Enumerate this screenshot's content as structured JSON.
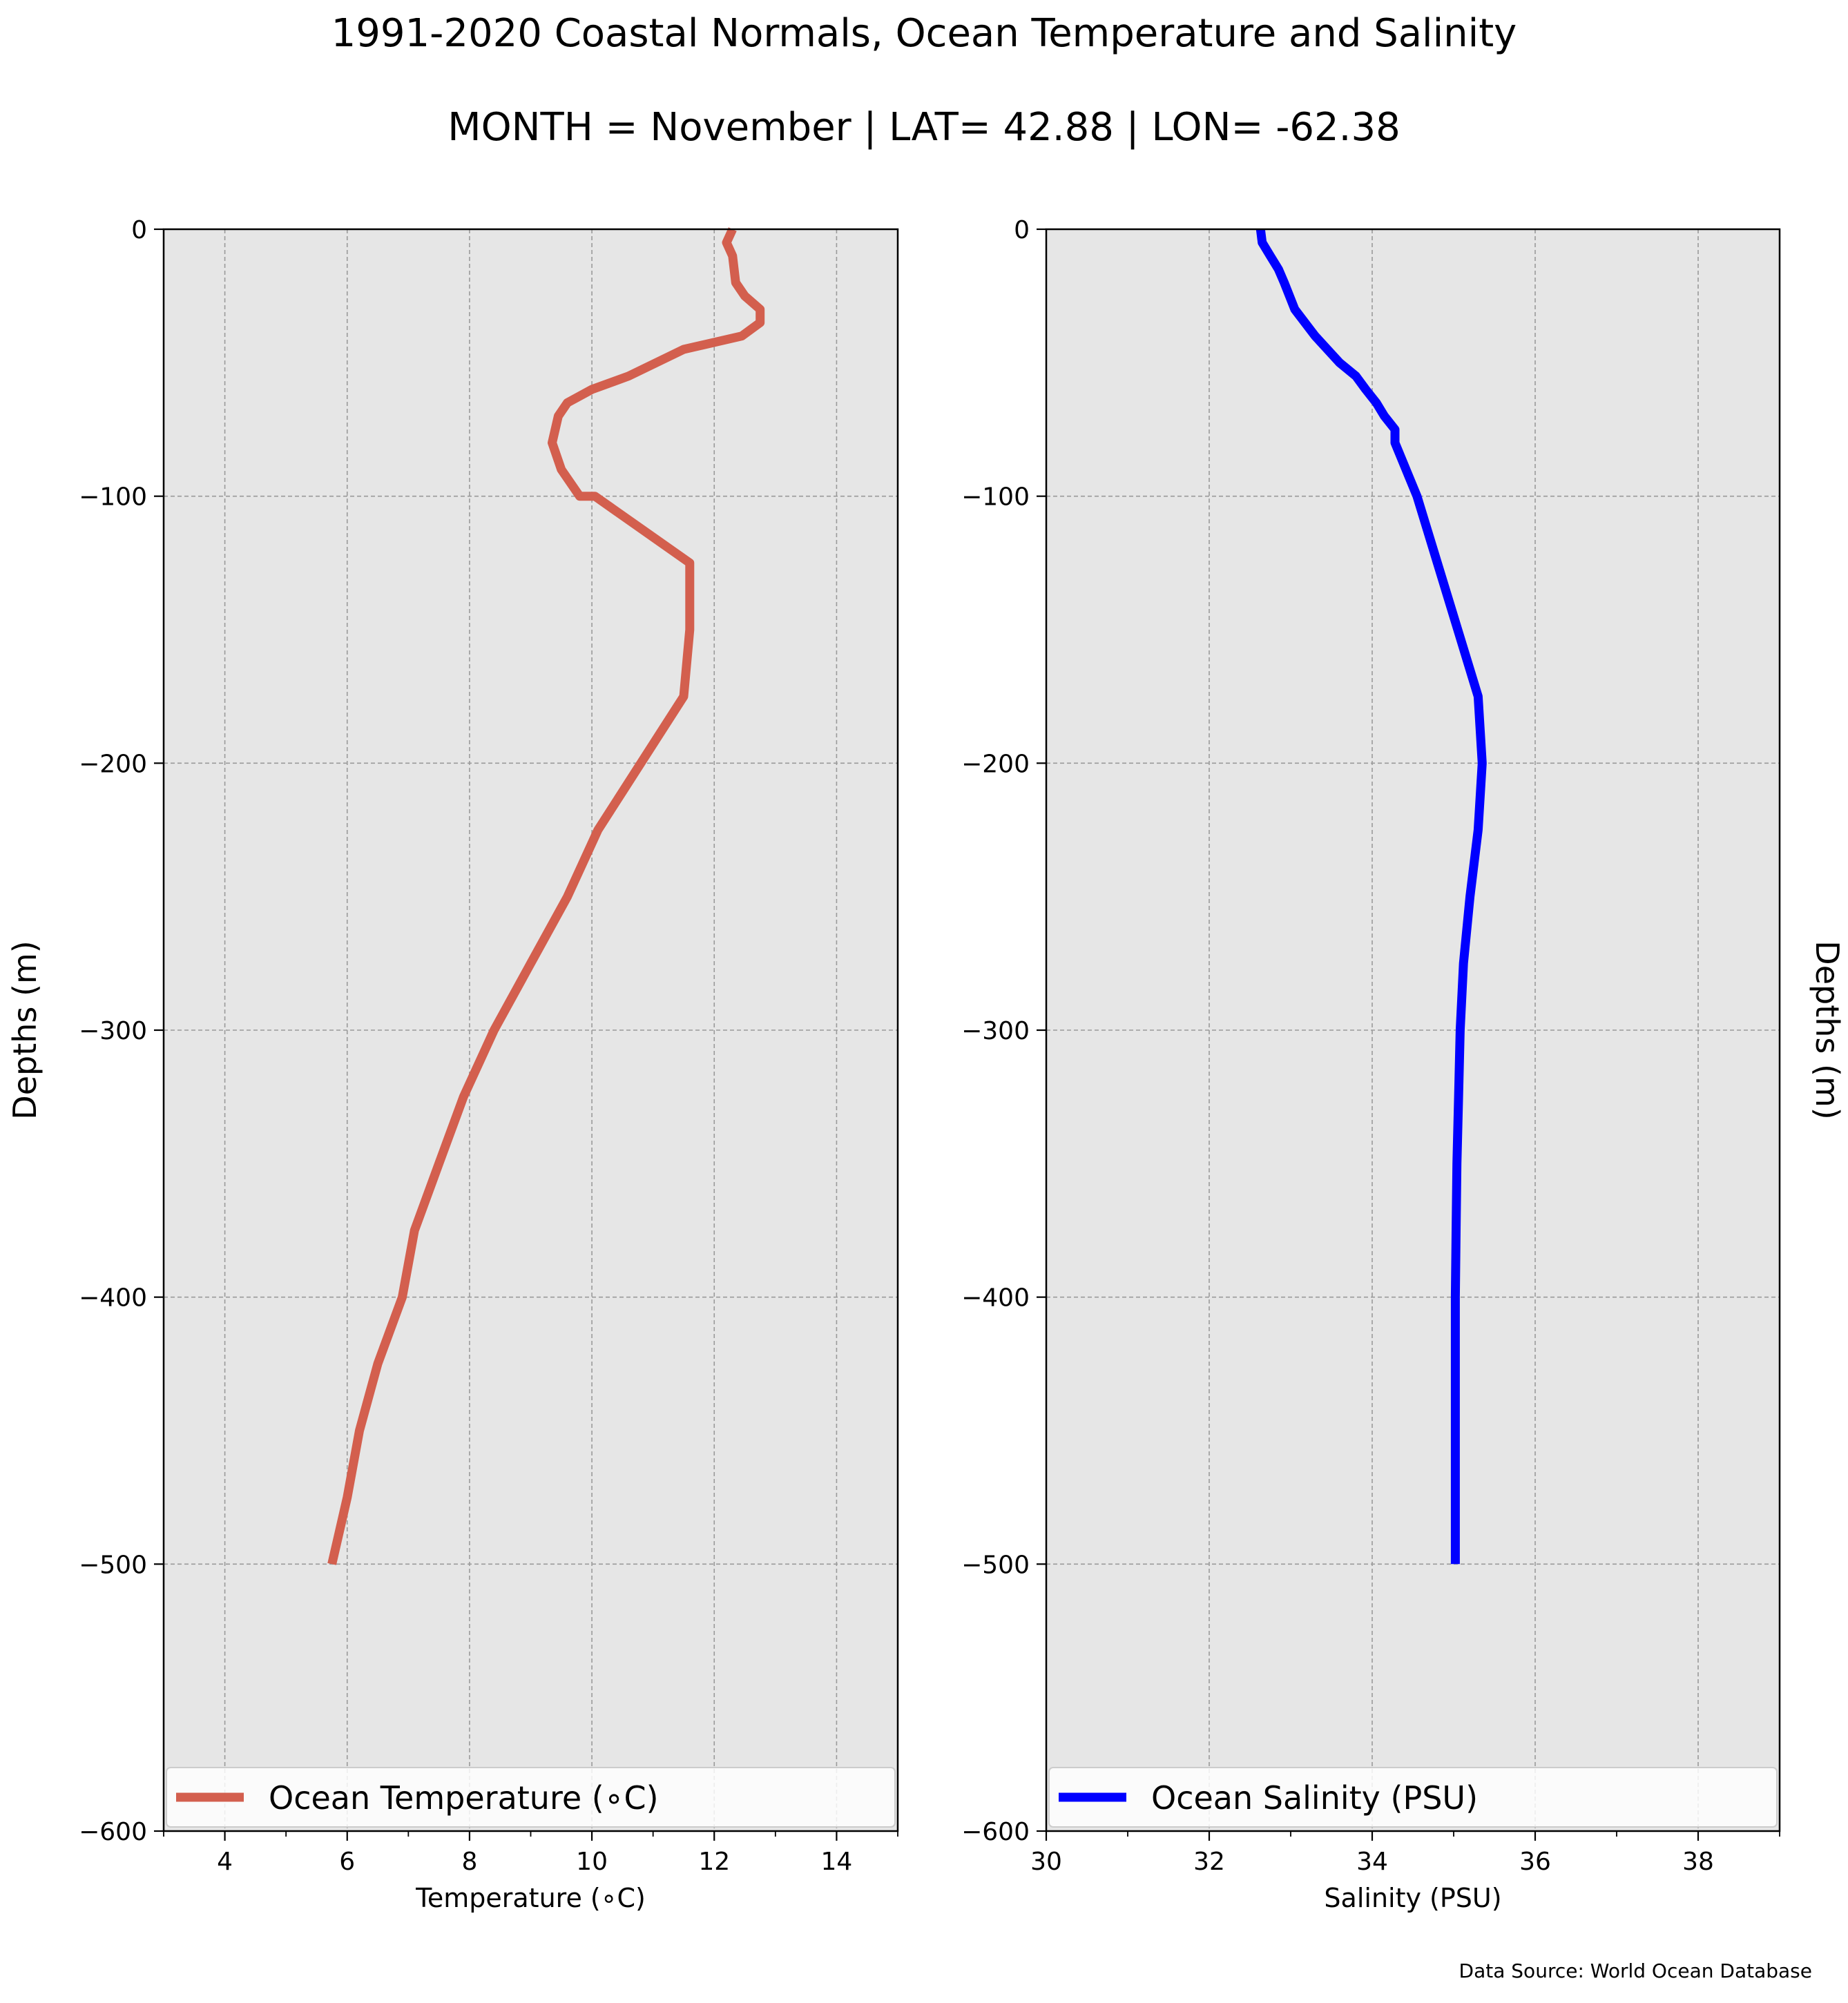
{
  "figure": {
    "title": "1991-2020 Coastal Normals, Ocean Temperature and Salinity",
    "subtitle": "MONTH = November | LAT= 42.88 | LON= -62.38",
    "source_note": "Data Source: World Ocean Database"
  },
  "chart_data": [
    {
      "type": "line",
      "xlabel": "Temperature ($^\\circ$C)",
      "xlabel_display": "Temperature (∘C)",
      "ylabel": "Depths (m)",
      "xlim": [
        3,
        15
      ],
      "ylim": [
        -600,
        0
      ],
      "xticks": [
        4,
        6,
        8,
        10,
        12,
        14
      ],
      "xtick_labels": [
        "4",
        "6",
        "8",
        "10",
        "12",
        "14"
      ],
      "xminor": [
        3,
        5,
        7,
        9,
        11,
        13,
        15
      ],
      "yticks": [
        0,
        -100,
        -200,
        -300,
        -400,
        -500,
        -600
      ],
      "ytick_labels": [
        "0",
        "−100",
        "−200",
        "−300",
        "−400",
        "−500",
        "−600"
      ],
      "grid": true,
      "legend_position": "bottom",
      "series": [
        {
          "name": "Ocean Temperature (∘C)",
          "color": "#d35f4e",
          "x": [
            12.3,
            12.2,
            12.3,
            12.35,
            12.5,
            12.75,
            12.75,
            12.45,
            11.5,
            10.6,
            10.0,
            9.6,
            9.45,
            9.35,
            9.5,
            9.8,
            10.05,
            11.6,
            11.6,
            11.5,
            10.8,
            10.1,
            9.6,
            9.0,
            8.4,
            7.9,
            7.5,
            7.1,
            6.9,
            6.5,
            6.2,
            6.0,
            5.75
          ],
          "y": [
            0,
            -5,
            -10,
            -20,
            -25,
            -30,
            -35,
            -40,
            -45,
            -55,
            -60,
            -65,
            -70,
            -80,
            -90,
            -100,
            -100,
            -125,
            -150,
            -175,
            -200,
            -225,
            -250,
            -275,
            -300,
            -325,
            -350,
            -375,
            -400,
            -425,
            -450,
            -475,
            -500
          ]
        }
      ]
    },
    {
      "type": "line",
      "xlabel": "Salinity (PSU)",
      "ylabel": "Depths (m)",
      "xlim": [
        30,
        39
      ],
      "ylim": [
        -600,
        0
      ],
      "xticks": [
        30,
        32,
        34,
        36,
        38
      ],
      "xtick_labels": [
        "30",
        "32",
        "34",
        "36",
        "38"
      ],
      "xminor": [
        31,
        33,
        35,
        37,
        39
      ],
      "yticks": [
        0,
        -100,
        -200,
        -300,
        -400,
        -500,
        -600
      ],
      "ytick_labels": [
        "0",
        "−100",
        "−200",
        "−300",
        "−400",
        "−500",
        "−600"
      ],
      "grid": true,
      "legend_position": "bottom",
      "series": [
        {
          "name": "Ocean Salinity (PSU)",
          "color": "#0000ff",
          "x": [
            32.63,
            32.65,
            32.75,
            32.85,
            32.92,
            33.05,
            33.3,
            33.6,
            33.8,
            33.92,
            34.05,
            34.15,
            34.28,
            34.28,
            34.55,
            34.8,
            35.05,
            35.3,
            35.35,
            35.3,
            35.2,
            35.12,
            35.08,
            35.06,
            35.04,
            35.03,
            35.02,
            35.02,
            35.02,
            35.02
          ],
          "y": [
            0,
            -5,
            -10,
            -15,
            -20,
            -30,
            -40,
            -50,
            -55,
            -60,
            -65,
            -70,
            -75,
            -80,
            -100,
            -125,
            -150,
            -175,
            -200,
            -225,
            -250,
            -275,
            -300,
            -325,
            -350,
            -375,
            -400,
            -425,
            -450,
            -500
          ]
        }
      ]
    }
  ]
}
